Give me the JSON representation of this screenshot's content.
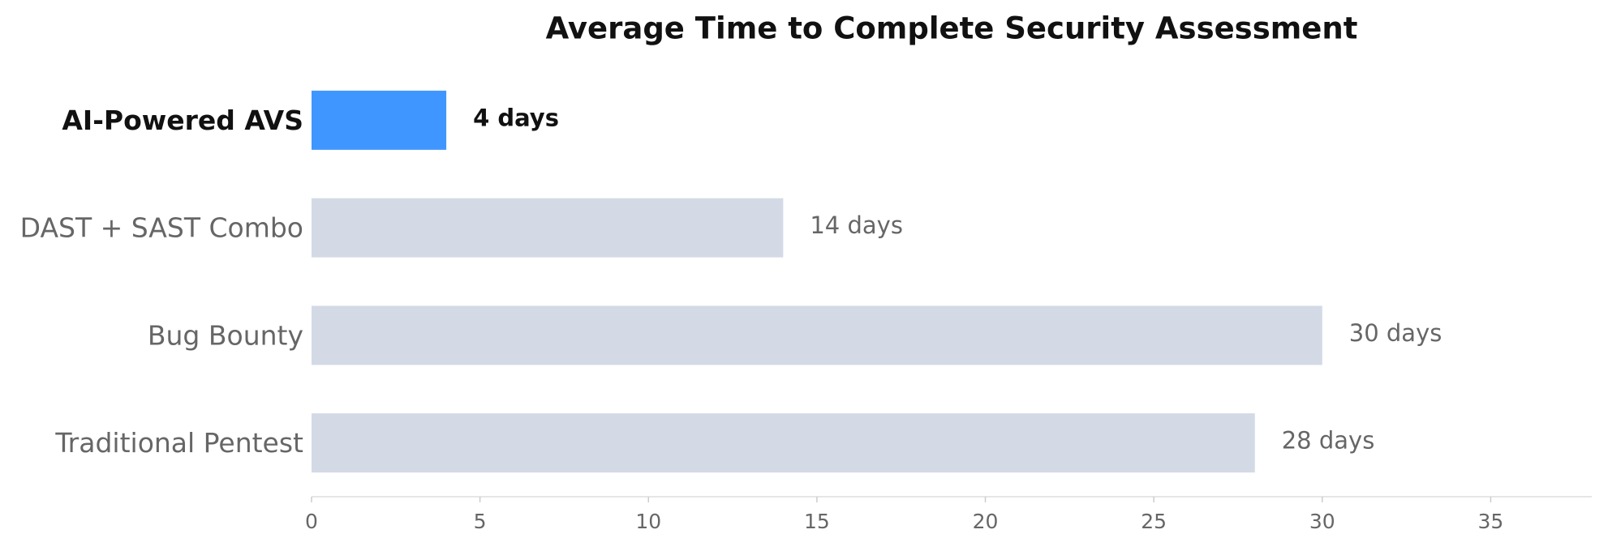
{
  "chart_data": {
    "type": "barh",
    "title": "Average Time to Complete Security Assessment",
    "categories": [
      "AI-Powered AVS",
      "DAST + SAST Combo",
      "Bug Bounty",
      "Traditional Pentest"
    ],
    "values": [
      4,
      14,
      30,
      28
    ],
    "value_labels": [
      "4 days",
      "14 days",
      "30 days",
      "28 days"
    ],
    "colors": [
      "#4096ff",
      "#d3dae6",
      "#d3dae6",
      "#d3dae6"
    ],
    "xlim": [
      0,
      38
    ],
    "xticks": [
      0,
      5,
      10,
      15,
      20,
      25,
      30,
      35
    ],
    "grid": false
  }
}
